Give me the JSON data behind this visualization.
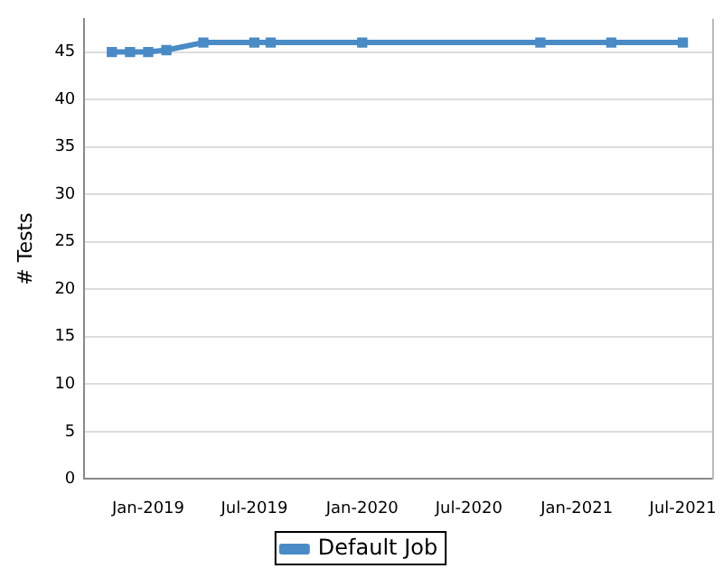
{
  "chart_data": {
    "type": "line",
    "ylabel": "# Tests",
    "x": [
      "2018-10-31",
      "2018-12-01",
      "2019-01-01",
      "2019-02-01",
      "2019-04-05",
      "2019-07-01",
      "2019-07-29",
      "2020-01-01",
      "2020-10-31",
      "2021-03-01",
      "2021-07-01"
    ],
    "series": [
      {
        "name": "Default Job",
        "color": "#4a8bc6",
        "values": [
          45,
          45,
          45,
          45.2,
          46,
          46,
          46,
          46,
          46,
          46,
          46
        ]
      }
    ],
    "xlim": [
      "2018-09-14",
      "2021-08-20"
    ],
    "xticks": [
      {
        "value": "2019-01-01",
        "label": "Jan-2019"
      },
      {
        "value": "2019-07-01",
        "label": "Jul-2019"
      },
      {
        "value": "2020-01-01",
        "label": "Jan-2020"
      },
      {
        "value": "2020-07-01",
        "label": "Jul-2020"
      },
      {
        "value": "2021-01-01",
        "label": "Jan-2021"
      },
      {
        "value": "2021-07-01",
        "label": "Jul-2021"
      }
    ],
    "ylim": [
      0,
      48.5
    ],
    "yticks": [
      0,
      5,
      10,
      15,
      20,
      25,
      30,
      35,
      40,
      45
    ],
    "grid": "y",
    "legend": "bottom",
    "marker": "square",
    "line_style": "solid"
  }
}
